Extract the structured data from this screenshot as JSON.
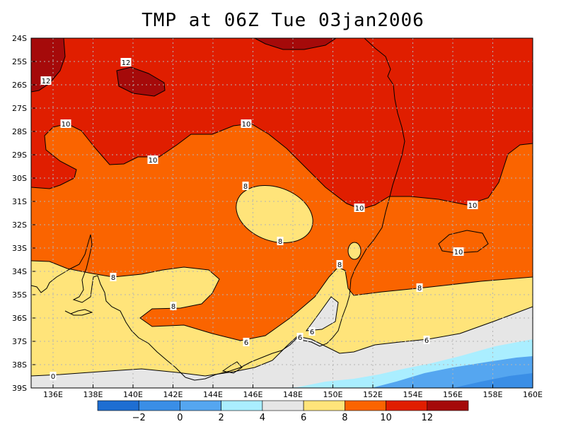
{
  "title": "TMP at 06Z Tue 03jan2006",
  "y_ticks": [
    "24S",
    "25S",
    "26S",
    "27S",
    "28S",
    "29S",
    "30S",
    "31S",
    "32S",
    "33S",
    "34S",
    "35S",
    "36S",
    "37S",
    "38S",
    "39S"
  ],
  "x_ticks": [
    "136E",
    "138E",
    "140E",
    "142E",
    "144E",
    "146E",
    "148E",
    "150E",
    "152E",
    "154E",
    "156E",
    "158E",
    "160E"
  ],
  "contour_labels": [
    "12",
    "12",
    "10",
    "10",
    "10",
    "10",
    "10",
    "10",
    "8",
    "8",
    "8",
    "8",
    "8",
    "8",
    "6",
    "6",
    "6",
    "6",
    "0"
  ],
  "colorbar": {
    "colors": [
      "#1e6ed2",
      "#3a8ee6",
      "#55a6f0",
      "#aaeeff",
      "#e6e6e6",
      "#ffe47a",
      "#fa6400",
      "#e01e00",
      "#a50a0a"
    ],
    "labels": [
      "−2",
      "0",
      "2",
      "4",
      "6",
      "8",
      "10",
      "12"
    ]
  },
  "colors": {
    "c12plus": "#a50a0a",
    "c10_12": "#e01e00",
    "c8_10": "#fa6400",
    "c6_8": "#ffe47a",
    "c4_6": "#e6e6e6",
    "c2_4": "#aaeeff",
    "c0_2": "#55a6f0",
    "cm2_0": "#3a8ee6"
  }
}
